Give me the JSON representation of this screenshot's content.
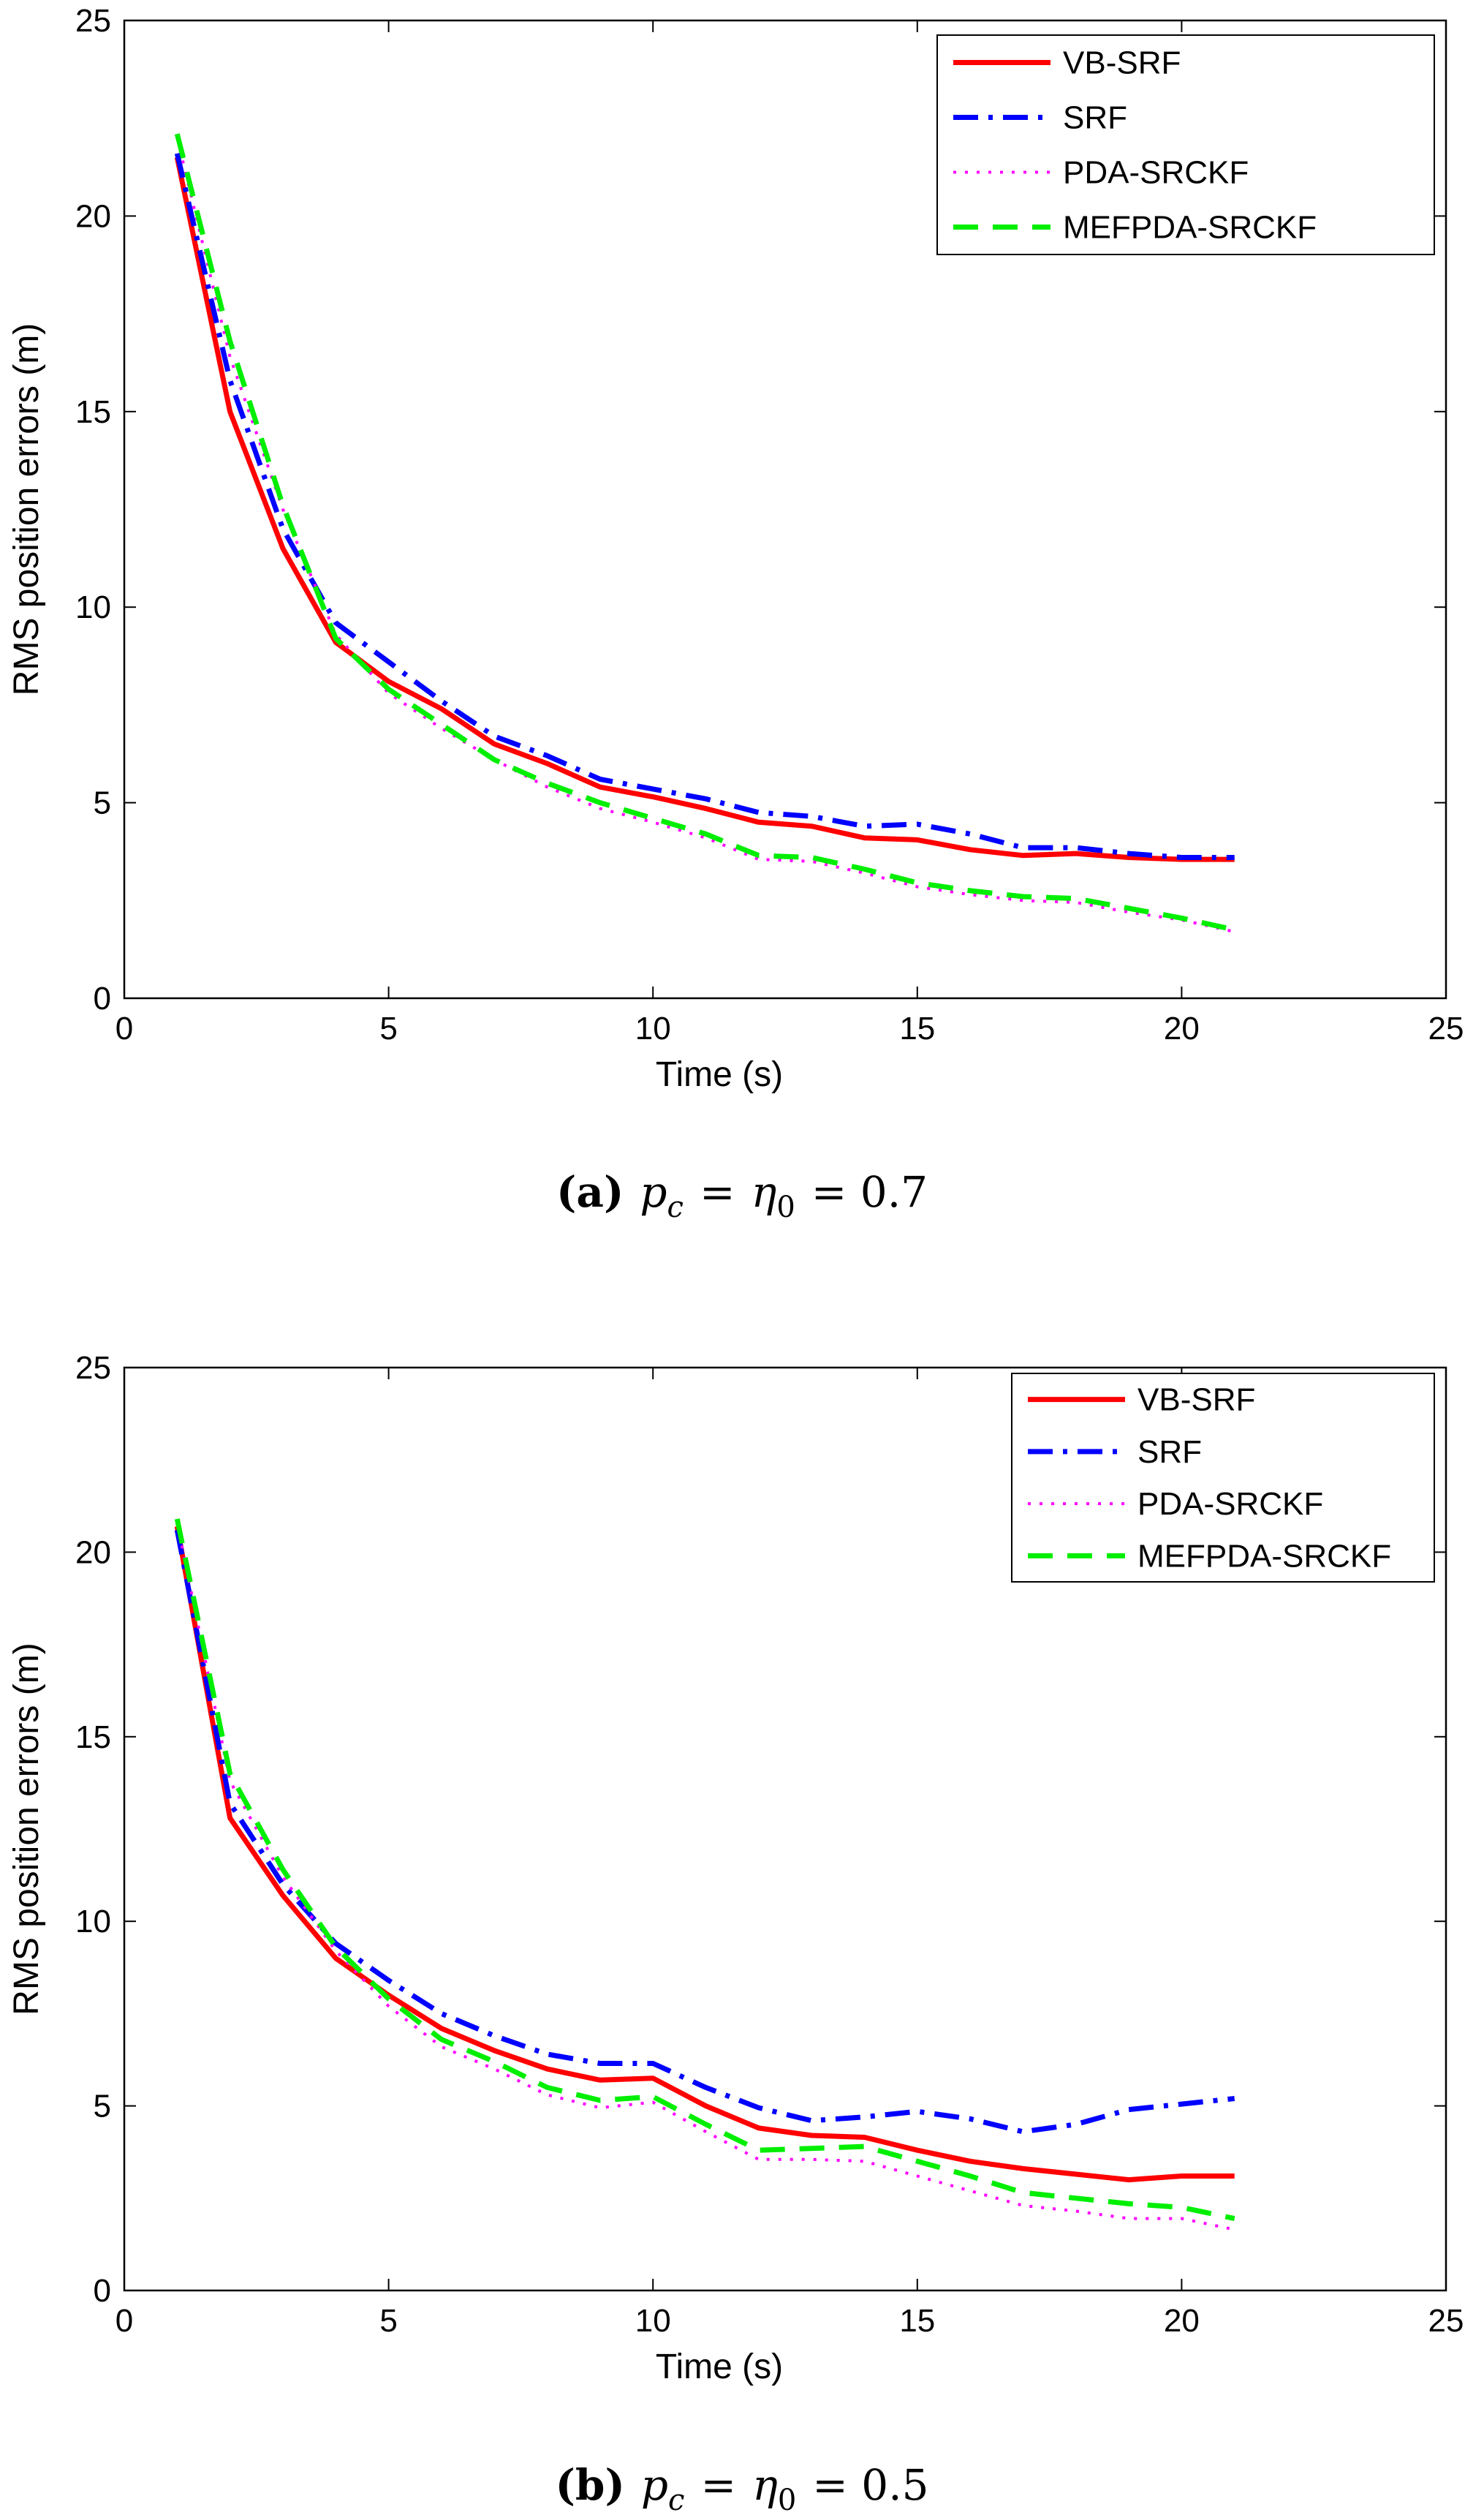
{
  "chart_data": [
    {
      "type": "line",
      "panel": "a",
      "caption": {
        "label": "(a)",
        "text": "p_c = η_0 = 0.7",
        "math": {
          "var1": "p",
          "sub1": "c",
          "eq": "=",
          "var2": "η",
          "sub2": "0",
          "rhs": "= 0.7"
        }
      },
      "xlabel": "Time (s)",
      "ylabel": "RMS position errors (m)",
      "xlim": [
        0,
        25
      ],
      "ylim": [
        0,
        25
      ],
      "xticks": [
        "0",
        "5",
        "10",
        "15",
        "20",
        "25"
      ],
      "yticks": [
        "0",
        "5",
        "10",
        "15",
        "20",
        "25"
      ],
      "legend_position": "top-right",
      "x": [
        1,
        2,
        3,
        4,
        5,
        6,
        7,
        8,
        9,
        10,
        11,
        12,
        13,
        14,
        15,
        16,
        17,
        18,
        19,
        20,
        21
      ],
      "series": [
        {
          "name": "VB-SRF",
          "color": "#ff0000",
          "style": "solid",
          "values": [
            21.5,
            15.0,
            11.5,
            9.1,
            8.1,
            7.4,
            6.5,
            6.0,
            5.4,
            5.15,
            4.85,
            4.5,
            4.4,
            4.1,
            4.05,
            3.8,
            3.65,
            3.7,
            3.6,
            3.55,
            3.55
          ]
        },
        {
          "name": "SRF",
          "color": "#0000ff",
          "style": "dashdot",
          "values": [
            21.6,
            15.8,
            12.0,
            9.6,
            8.6,
            7.6,
            6.7,
            6.2,
            5.6,
            5.35,
            5.1,
            4.75,
            4.65,
            4.4,
            4.45,
            4.2,
            3.85,
            3.85,
            3.7,
            3.6,
            3.6
          ]
        },
        {
          "name": "PDA-SRCKF",
          "color": "#ff00ff",
          "style": "dotted",
          "values": [
            22.0,
            16.4,
            12.5,
            9.3,
            7.8,
            6.9,
            6.1,
            5.4,
            4.85,
            4.5,
            4.1,
            3.55,
            3.5,
            3.2,
            2.85,
            2.65,
            2.5,
            2.45,
            2.2,
            2.0,
            1.7
          ]
        },
        {
          "name": "MEFPDA-SRCKF",
          "color": "#00ee00",
          "style": "dashed",
          "values": [
            22.1,
            16.8,
            12.6,
            9.2,
            7.9,
            7.0,
            6.1,
            5.5,
            5.0,
            4.6,
            4.2,
            3.65,
            3.6,
            3.3,
            2.95,
            2.75,
            2.6,
            2.55,
            2.3,
            2.05,
            1.75
          ]
        }
      ]
    },
    {
      "type": "line",
      "panel": "b",
      "caption": {
        "label": "(b)",
        "text": "p_c = η_0 = 0.5",
        "math": {
          "var1": "p",
          "sub1": "c",
          "eq": "=",
          "var2": "η",
          "sub2": "0",
          "rhs": "= 0.5"
        }
      },
      "xlabel": "Time (s)",
      "ylabel": "RMS position errors (m)",
      "xlim": [
        0,
        25
      ],
      "ylim": [
        0,
        25
      ],
      "xticks": [
        "0",
        "5",
        "10",
        "15",
        "20",
        "25"
      ],
      "yticks": [
        "0",
        "5",
        "10",
        "15",
        "20",
        "25"
      ],
      "legend_position": "top-right",
      "x": [
        1,
        2,
        3,
        4,
        5,
        6,
        7,
        8,
        9,
        10,
        11,
        12,
        13,
        14,
        15,
        16,
        17,
        18,
        19,
        20,
        21
      ],
      "series": [
        {
          "name": "VB-SRF",
          "color": "#ff0000",
          "style": "solid",
          "values": [
            20.7,
            12.8,
            10.7,
            9.0,
            8.0,
            7.1,
            6.5,
            6.0,
            5.7,
            5.75,
            5.0,
            4.4,
            4.2,
            4.15,
            3.8,
            3.5,
            3.3,
            3.15,
            3.0,
            3.1,
            3.1
          ]
        },
        {
          "name": "SRF",
          "color": "#0000ff",
          "style": "dashdot",
          "values": [
            20.6,
            13.2,
            11.0,
            9.4,
            8.4,
            7.5,
            6.9,
            6.4,
            6.15,
            6.15,
            5.5,
            4.95,
            4.6,
            4.7,
            4.85,
            4.65,
            4.3,
            4.5,
            4.9,
            5.05,
            5.2
          ]
        },
        {
          "name": "PDA-SRCKF",
          "color": "#ff00ff",
          "style": "dotted",
          "values": [
            20.8,
            13.8,
            11.2,
            9.2,
            7.7,
            6.6,
            6.0,
            5.3,
            4.95,
            5.1,
            4.3,
            3.55,
            3.55,
            3.5,
            3.1,
            2.7,
            2.3,
            2.15,
            1.95,
            1.95,
            1.65
          ]
        },
        {
          "name": "MEFPDA-SRCKF",
          "color": "#00ee00",
          "style": "dashed",
          "values": [
            20.9,
            14.0,
            11.4,
            9.3,
            7.9,
            6.8,
            6.2,
            5.5,
            5.15,
            5.25,
            4.5,
            3.8,
            3.85,
            3.9,
            3.5,
            3.1,
            2.65,
            2.5,
            2.35,
            2.25,
            1.95
          ]
        }
      ]
    }
  ]
}
